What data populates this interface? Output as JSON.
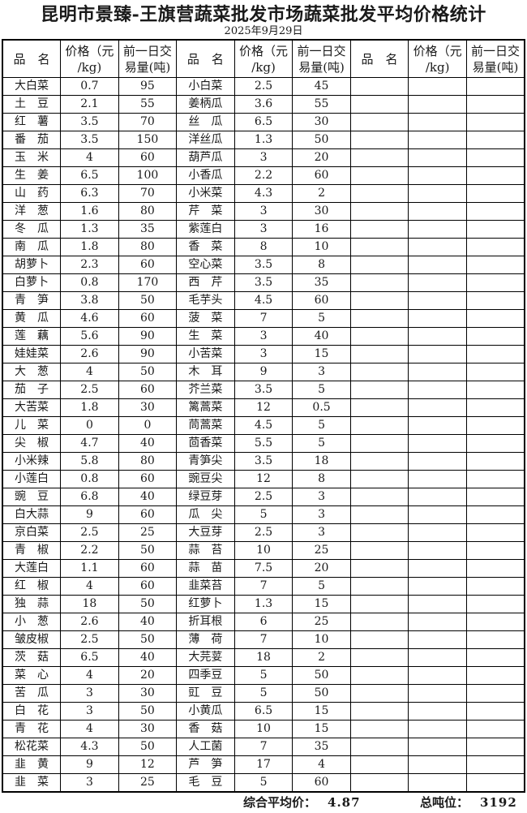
{
  "page": {
    "title": "昆明市景臻-王旗营蔬菜批发市场蔬菜批发平均价格统计",
    "date": "2025年9月29日"
  },
  "table": {
    "headers": {
      "name": "品　名",
      "price_line1": "价格（元",
      "price_line2": "/kg)",
      "volume_line1": "前一日交",
      "volume_line2": "易量(吨)"
    },
    "row_count": 40,
    "groups": [
      {
        "rows": [
          [
            "大白菜",
            "0.7",
            "95"
          ],
          [
            "土豆",
            "2.1",
            "55"
          ],
          [
            "红薯",
            "3.5",
            "70"
          ],
          [
            "番茄",
            "3.5",
            "150"
          ],
          [
            "玉米",
            "4",
            "60"
          ],
          [
            "生姜",
            "6.5",
            "100"
          ],
          [
            "山药",
            "6.3",
            "70"
          ],
          [
            "洋葱",
            "1.6",
            "80"
          ],
          [
            "冬瓜",
            "1.3",
            "35"
          ],
          [
            "南瓜",
            "1.8",
            "80"
          ],
          [
            "胡萝卜",
            "2.3",
            "60"
          ],
          [
            "白萝卜",
            "0.8",
            "170"
          ],
          [
            "青笋",
            "3.8",
            "50"
          ],
          [
            "黄瓜",
            "4.6",
            "60"
          ],
          [
            "莲藕",
            "5.6",
            "90"
          ],
          [
            "娃娃菜",
            "2.6",
            "90"
          ],
          [
            "大葱",
            "4",
            "50"
          ],
          [
            "茄子",
            "2.5",
            "60"
          ],
          [
            "大苦菜",
            "1.8",
            "30"
          ],
          [
            "儿菜",
            "0",
            "0"
          ],
          [
            "尖椒",
            "4.7",
            "40"
          ],
          [
            "小米辣",
            "5.8",
            "80"
          ],
          [
            "小莲白",
            "0.8",
            "60"
          ],
          [
            "豌豆",
            "6.8",
            "40"
          ],
          [
            "白大蒜",
            "9",
            "60"
          ],
          [
            "京白菜",
            "2.5",
            "25"
          ],
          [
            "青椒",
            "2.2",
            "50"
          ],
          [
            "大莲白",
            "1.1",
            "60"
          ],
          [
            "红椒",
            "4",
            "60"
          ],
          [
            "独蒜",
            "18",
            "50"
          ],
          [
            "小葱",
            "2.6",
            "40"
          ],
          [
            "皱皮椒",
            "2.5",
            "50"
          ],
          [
            "茨菇",
            "6.5",
            "40"
          ],
          [
            "菜心",
            "4",
            "20"
          ],
          [
            "苦瓜",
            "3",
            "30"
          ],
          [
            "白花",
            "3",
            "50"
          ],
          [
            "青花",
            "4",
            "30"
          ],
          [
            "松花菜",
            "4.3",
            "50"
          ],
          [
            "韭黄",
            "9",
            "12"
          ],
          [
            "韭菜",
            "3",
            "25"
          ]
        ]
      },
      {
        "rows": [
          [
            "小白菜",
            "2.5",
            "45"
          ],
          [
            "姜柄瓜",
            "3.6",
            "55"
          ],
          [
            "丝瓜",
            "6.5",
            "30"
          ],
          [
            "洋丝瓜",
            "1.3",
            "50"
          ],
          [
            "葫芦瓜",
            "3",
            "20"
          ],
          [
            "小香瓜",
            "2.2",
            "60"
          ],
          [
            "小米菜",
            "4.3",
            "2"
          ],
          [
            "芹菜",
            "3",
            "30"
          ],
          [
            "紫莲白",
            "3",
            "16"
          ],
          [
            "香菜",
            "8",
            "10"
          ],
          [
            "空心菜",
            "3.5",
            "8"
          ],
          [
            "西芹",
            "3.5",
            "35"
          ],
          [
            "毛芋头",
            "4.5",
            "60"
          ],
          [
            "菠菜",
            "7",
            "5"
          ],
          [
            "生菜",
            "3",
            "40"
          ],
          [
            "小苦菜",
            "3",
            "15"
          ],
          [
            "木耳",
            "9",
            "3"
          ],
          [
            "芥兰菜",
            "3.5",
            "5"
          ],
          [
            "篱蒿菜",
            "12",
            "0.5"
          ],
          [
            "茼蒿菜",
            "4.5",
            "5"
          ],
          [
            "茴香菜",
            "5.5",
            "5"
          ],
          [
            "青笋尖",
            "3.5",
            "18"
          ],
          [
            "豌豆尖",
            "12",
            "8"
          ],
          [
            "绿豆芽",
            "2.5",
            "3"
          ],
          [
            "瓜尖",
            "5",
            "3"
          ],
          [
            "大豆芽",
            "2.5",
            "3"
          ],
          [
            "蒜苔",
            "10",
            "25"
          ],
          [
            "蒜苗",
            "7.5",
            "20"
          ],
          [
            "韭菜苔",
            "7",
            "5"
          ],
          [
            "红萝卜",
            "1.3",
            "15"
          ],
          [
            "折耳根",
            "6",
            "25"
          ],
          [
            "薄荷",
            "7",
            "10"
          ],
          [
            "大芫荽",
            "18",
            "2"
          ],
          [
            "四季豆",
            "5",
            "50"
          ],
          [
            "豇豆",
            "5",
            "50"
          ],
          [
            "小黄瓜",
            "6.5",
            "15"
          ],
          [
            "香菇",
            "10",
            "15"
          ],
          [
            "人工菌",
            "7",
            "35"
          ],
          [
            "芦笋",
            "17",
            "4"
          ],
          [
            "毛豆",
            "5",
            "60"
          ]
        ]
      },
      {
        "rows": []
      }
    ]
  },
  "footer": {
    "average_label": "综合平均价：",
    "average_value": "4.87",
    "tonnage_label": "总吨位：",
    "tonnage_value": "3192"
  },
  "colors": {
    "text": "#1a1a1a",
    "border": "#000000",
    "background": "#ffffff"
  }
}
